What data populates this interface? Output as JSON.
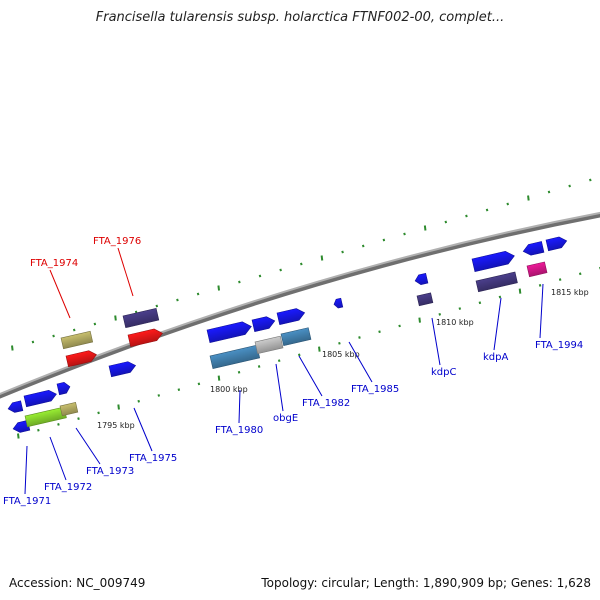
{
  "title": "Francisella tularensis subsp. holarctica FTNF002-00, complet...",
  "accession": "Accession: NC_009749",
  "topology": "Topology: circular; Length: 1,890,909 bp; Genes: 1,628",
  "colors": {
    "backbone": "#888888",
    "tick": "#2e8b2e",
    "gene_label": "#0000cc",
    "highlight_label": "#dd0000",
    "forward_gene": "#1a1aff",
    "purple_gene": "#4b3f8c",
    "red_gene": "#ff1a1a",
    "khaki_gene": "#c8bf6e",
    "lime_gene": "#99ee33",
    "magenta_gene": "#ee1a99",
    "steelblue_gene": "#4a90c4",
    "grey_gene": "#cccccc"
  },
  "kbp_labels": [
    "1795 kbp",
    "1800 kbp",
    "1805 kbp",
    "1810 kbp",
    "1815 kbp"
  ],
  "gene_labels": [
    {
      "text": "FTA_1974",
      "kind": "highlight"
    },
    {
      "text": "FTA_1976",
      "kind": "highlight"
    },
    {
      "text": "FTA_1971",
      "kind": "normal"
    },
    {
      "text": "FTA_1972",
      "kind": "normal"
    },
    {
      "text": "FTA_1973",
      "kind": "normal"
    },
    {
      "text": "FTA_1975",
      "kind": "normal"
    },
    {
      "text": "FTA_1980",
      "kind": "normal"
    },
    {
      "text": "obgE",
      "kind": "normal"
    },
    {
      "text": "FTA_1982",
      "kind": "normal"
    },
    {
      "text": "FTA_1985",
      "kind": "normal"
    },
    {
      "text": "kdpC",
      "kind": "normal"
    },
    {
      "text": "kdpA",
      "kind": "normal"
    },
    {
      "text": "FTA_1994",
      "kind": "normal"
    }
  ]
}
